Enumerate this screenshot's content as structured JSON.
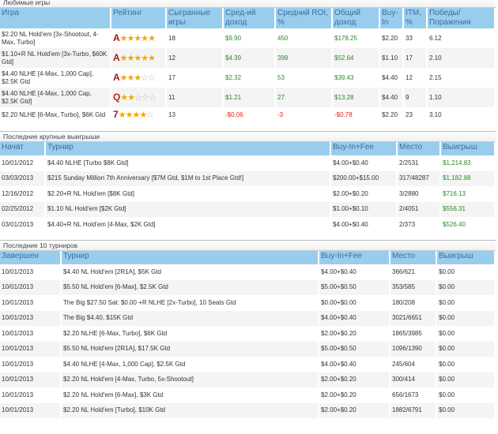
{
  "favorites": {
    "title": "Любимые игры",
    "headers": [
      "Игра",
      "Рейтинг",
      "Сыгранные игры",
      "Сред-ий доход",
      "Средний ROI, %",
      "Общий доход",
      "Buy-In",
      "ITM, %",
      "Победы/ Поражения"
    ],
    "rows": [
      {
        "game": "$2.20 NL Hold'em [3x-Shootout, 4-Max, Turbo]",
        "letter": "A",
        "stars": 5,
        "played": "18",
        "avg": "$9.90",
        "roi": "450",
        "total": "$178.25",
        "buyin": "$2.20",
        "itm": "33",
        "wl": "6.12",
        "neg": false
      },
      {
        "game": "$1.10+R NL Hold'em [3x-Turbo, $60K Gtd]",
        "letter": "A",
        "stars": 5,
        "played": "12",
        "avg": "$4.39",
        "roi": "399",
        "total": "$52.64",
        "buyin": "$1.10",
        "itm": "17",
        "wl": "2.10",
        "neg": false
      },
      {
        "game": "$4.40 NLHE [4-Max, 1,000 Cap], $2.5K Gtd",
        "letter": "A",
        "stars": 3,
        "played": "17",
        "avg": "$2.32",
        "roi": "53",
        "total": "$39.43",
        "buyin": "$4.40",
        "itm": "12",
        "wl": "2.15",
        "neg": false
      },
      {
        "game": "$4.40 NLHE [4-Max, 1,000 Cap, $2.5K Gtd]",
        "letter": "Q",
        "stars": 2,
        "played": "11",
        "avg": "$1.21",
        "roi": "27",
        "total": "$13.28",
        "buyin": "$4.40",
        "itm": "9",
        "wl": "1.10",
        "neg": false
      },
      {
        "game": "$2.20 NLHE [6-Max, Turbo], $6K Gtd",
        "letter": "7",
        "stars": 4,
        "played": "13",
        "avg": "-$0.06",
        "roi": "-3",
        "total": "-$0.78",
        "buyin": "$2.20",
        "itm": "23",
        "wl": "3.10",
        "neg": true
      }
    ]
  },
  "big_wins": {
    "title": "Последние крупные выигрыши",
    "headers": [
      "Начат",
      "Турнир",
      "Buy-In+Fee",
      "Место",
      "Выигрыш"
    ],
    "rows": [
      [
        "10/01/2012",
        "$4.40 NLHE [Turbo $8K Gtd]",
        "$4.00+$0.40",
        "2/2531",
        "$1,214.83"
      ],
      [
        "03/03/2013",
        "$215 Sunday Million 7th Anniversary [$7M Gtd, $1M to 1st Place Gtd!]",
        "$200.00+$15.00",
        "317/48287",
        "$1,182.88"
      ],
      [
        "12/16/2012",
        "$2.20+R NL Hold'em [$8K Gtd]",
        "$2.00+$0.20",
        "3/2880",
        "$716.13"
      ],
      [
        "02/25/2012",
        "$1.10 NL Hold'em [$2K Gtd]",
        "$1.00+$0.10",
        "2/4051",
        "$556.31"
      ],
      [
        "03/01/2013",
        "$4.40+R NL Hold'em [4-Max, $2K Gtd]",
        "$4.00+$0.40",
        "2/373",
        "$526.40"
      ]
    ]
  },
  "last10": {
    "title": "Последние 10 турниров",
    "headers": [
      "Завершен",
      "Турнир",
      "Buy-In+Fee",
      "Место",
      "Выигрыш"
    ],
    "rows": [
      [
        "10/01/2013",
        "$4.40 NL Hold'em [2R1A], $5K Gtd",
        "$4.00+$0.40",
        "366/621",
        "$0.00"
      ],
      [
        "10/01/2013",
        "$5.50 NL Hold'em [6-Max], $2.5K Gtd",
        "$5.00+$0.50",
        "353/585",
        "$0.00"
      ],
      [
        "10/01/2013",
        "The Big $27.50 Sat: $0.00 +R NLHE [2x-Turbo], 10 Seats Gtd",
        "$0.00+$0.00",
        "180/208",
        "$0.00"
      ],
      [
        "10/01/2013",
        "The Big $4.40, $15K Gtd",
        "$4.00+$0.40",
        "3021/6651",
        "$0.00"
      ],
      [
        "10/01/2013",
        "$2.20 NLHE [6-Max, Turbo], $6K Gtd",
        "$2.00+$0.20",
        "1865/3985",
        "$0.00"
      ],
      [
        "10/01/2013",
        "$5.50 NL Hold'em [2R1A], $17.5K Gtd",
        "$5.00+$0.50",
        "1096/1390",
        "$0.00"
      ],
      [
        "10/01/2013",
        "$4.40 NLHE [4-Max, 1,000 Cap], $2.5K Gtd",
        "$4.00+$0.40",
        "245/604",
        "$0.00"
      ],
      [
        "10/01/2013",
        "$2.20 NL Hold'em [4-Max, Turbo, 5x-Shootout]",
        "$2.00+$0.20",
        "300/414",
        "$0.00"
      ],
      [
        "10/01/2013",
        "$2.20 NL Hold'em [6-Max], $3K Gtd",
        "$2.00+$0.20",
        "656/1673",
        "$0.00"
      ],
      [
        "10/01/2013",
        "$2.20 NL Hold'em [Turbo], $10K Gtd",
        "$2.00+$0.20",
        "1882/6791",
        "$0.00"
      ]
    ]
  }
}
